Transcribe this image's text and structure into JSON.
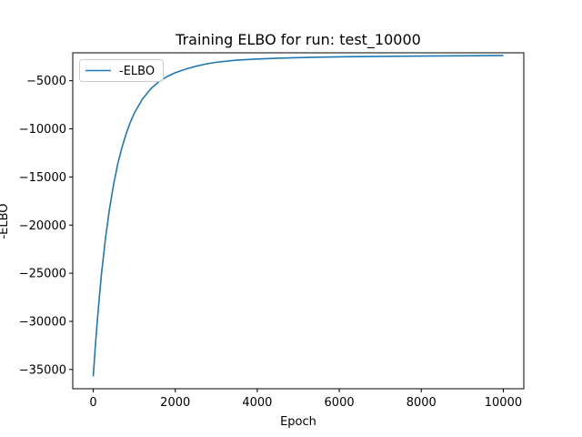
{
  "chart_data": {
    "type": "line",
    "title": "Training ELBO for run: test_10000",
    "xlabel": "Epoch",
    "ylabel": "-ELBO",
    "xlim": [
      -500,
      10500
    ],
    "ylim": [
      -37000,
      -2100
    ],
    "x_ticks": [
      0,
      2000,
      4000,
      6000,
      8000,
      10000
    ],
    "x_tick_labels": [
      "0",
      "2000",
      "4000",
      "6000",
      "8000",
      "10000"
    ],
    "y_ticks": [
      -35000,
      -30000,
      -25000,
      -20000,
      -15000,
      -10000,
      -5000
    ],
    "y_tick_labels": [
      "−35000",
      "−30000",
      "−25000",
      "−20000",
      "−15000",
      "−10000",
      "−5000"
    ],
    "grid": false,
    "legend": "upper-left",
    "series": [
      {
        "name": "-ELBO",
        "color": "#1f77b4",
        "x": [
          0,
          50,
          100,
          150,
          200,
          300,
          400,
          500,
          600,
          700,
          800,
          900,
          1000,
          1200,
          1400,
          1600,
          1800,
          2000,
          2250,
          2500,
          2750,
          3000,
          3500,
          4000,
          4500,
          5000,
          5500,
          6000,
          7000,
          8000,
          9000,
          10000
        ],
        "y": [
          -35700,
          -32600,
          -29900,
          -27400,
          -25100,
          -21300,
          -18200,
          -15700,
          -13600,
          -11950,
          -10550,
          -9350,
          -8380,
          -6900,
          -5850,
          -5100,
          -4570,
          -4170,
          -3800,
          -3500,
          -3260,
          -3080,
          -2860,
          -2740,
          -2660,
          -2600,
          -2560,
          -2520,
          -2470,
          -2440,
          -2410,
          -2380
        ]
      }
    ]
  }
}
